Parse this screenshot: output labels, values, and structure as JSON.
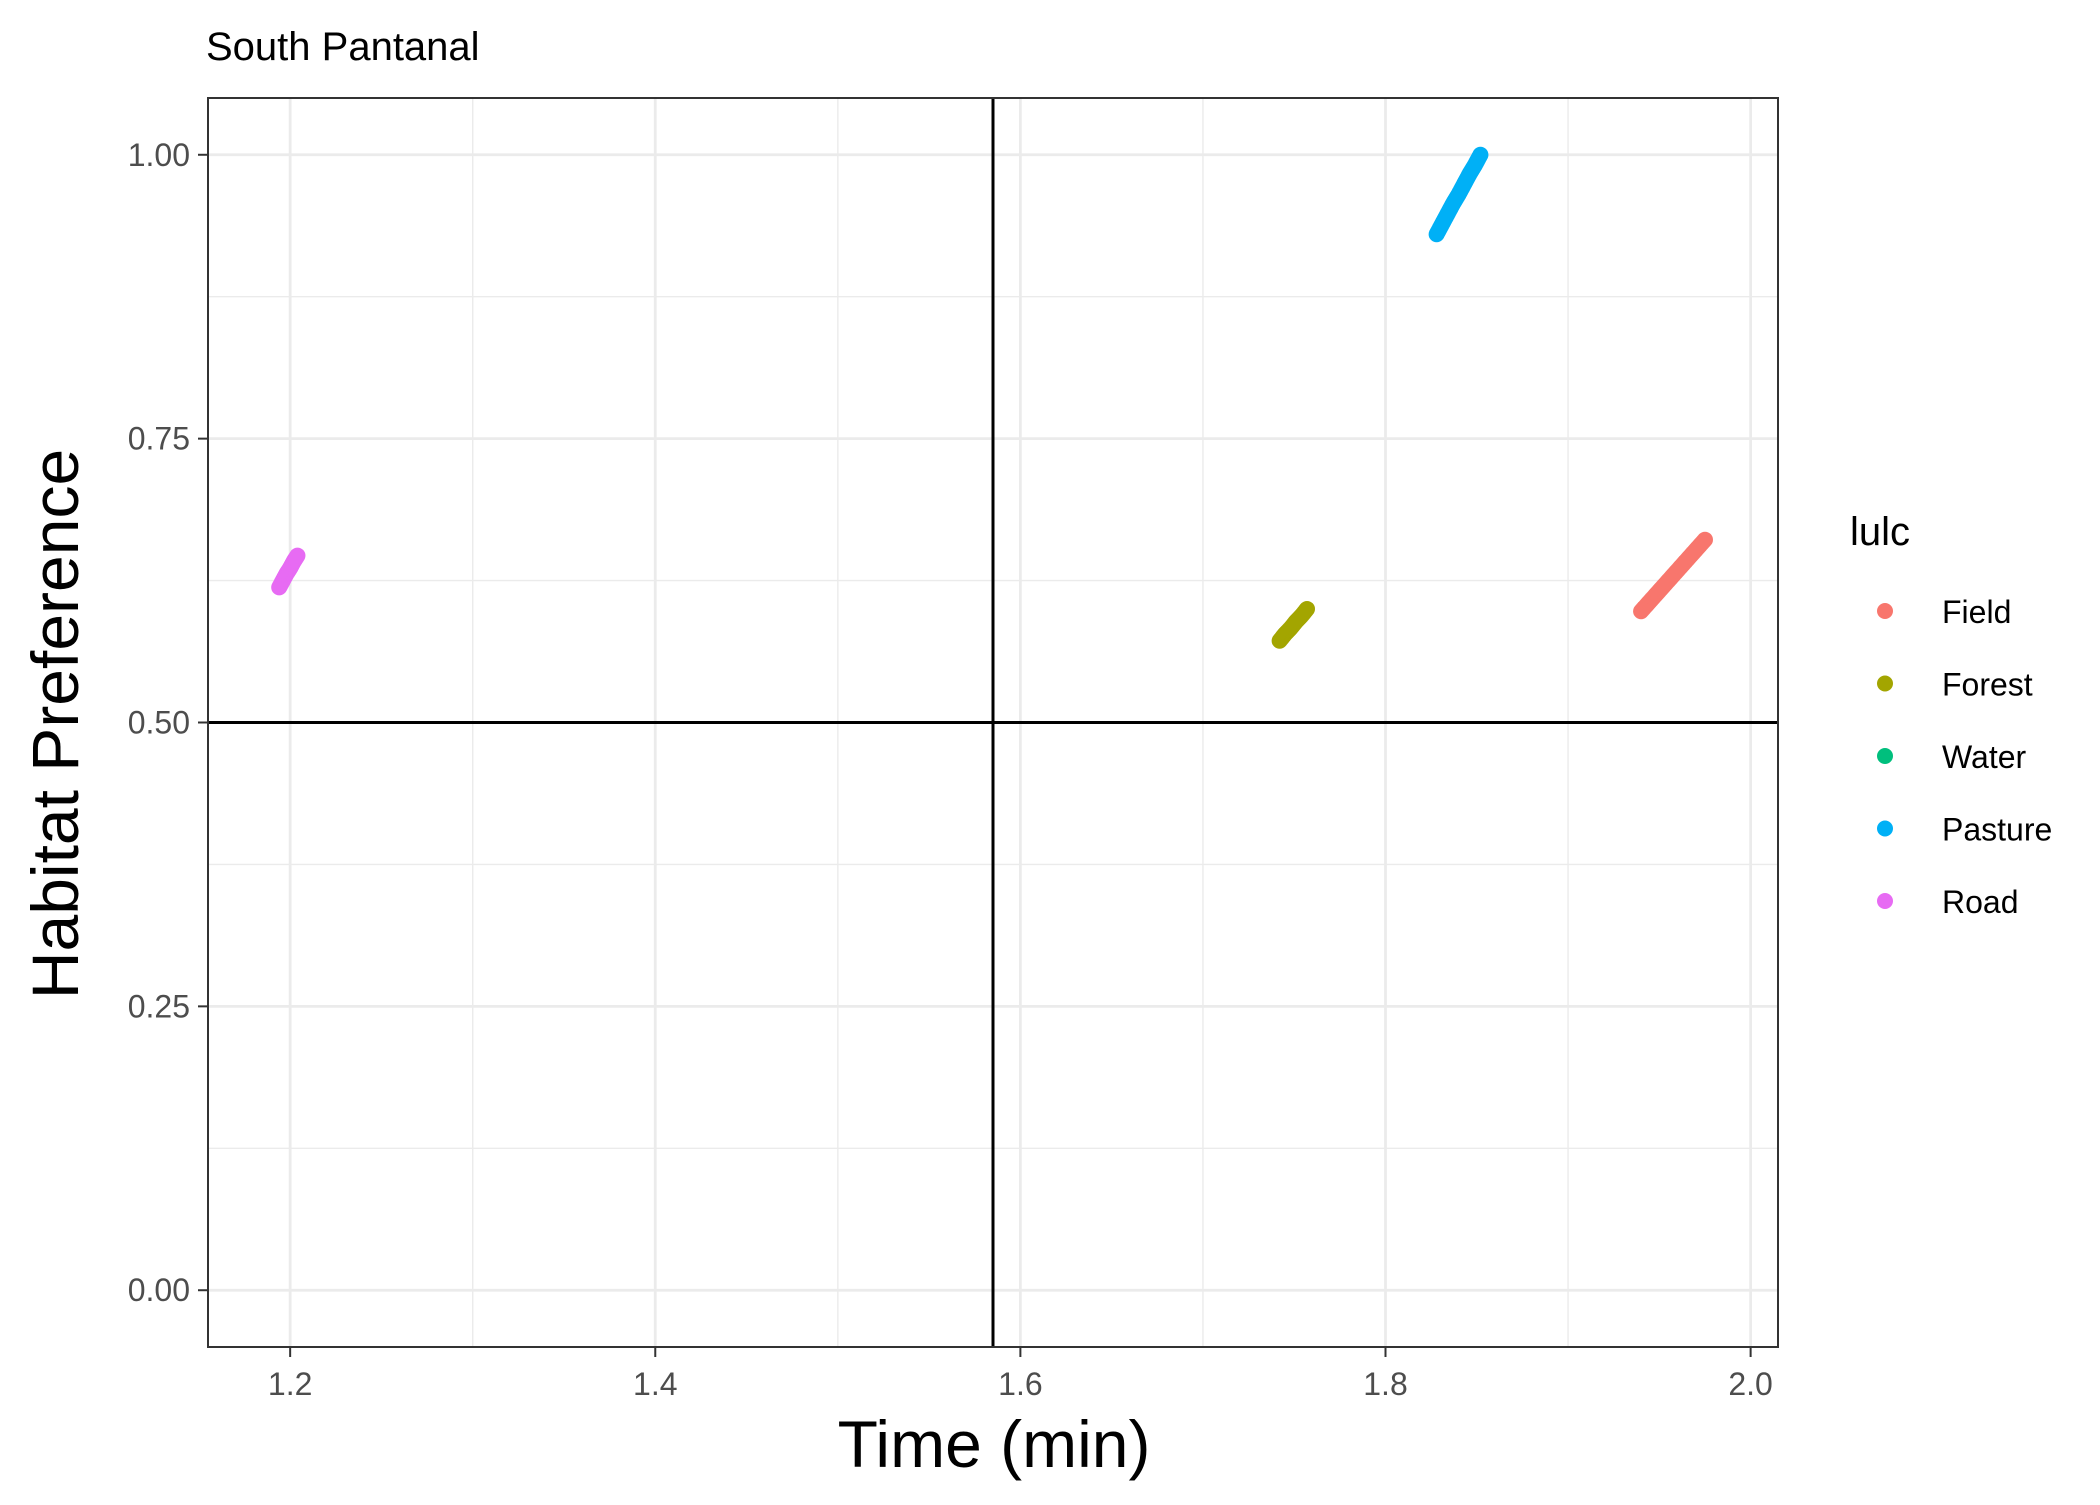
{
  "chart_data": {
    "type": "scatter",
    "title": "South Pantanal",
    "xlabel": "Time (min)",
    "ylabel": "Habitat Preference",
    "xlim": [
      1.155,
      2.015
    ],
    "ylim": [
      -0.05,
      1.05
    ],
    "x_major_ticks": [
      1.2,
      1.4,
      1.6,
      1.8,
      2.0
    ],
    "x_tick_labels": [
      "1.2",
      "1.4",
      "1.6",
      "1.8",
      "2.0"
    ],
    "x_minor_ticks": [
      1.3,
      1.5,
      1.7,
      1.9
    ],
    "y_major_ticks": [
      0,
      0.25,
      0.5,
      0.75,
      1.0
    ],
    "y_tick_labels": [
      "0.00",
      "0.25",
      "0.50",
      "0.75",
      "1.00"
    ],
    "y_minor_ticks": [
      0.125,
      0.375,
      0.625,
      0.875
    ],
    "grid": true,
    "reference_lines": {
      "vertical_x": 1.585,
      "horizontal_y": 0.5
    },
    "legend": {
      "title": "lulc",
      "position": "right"
    },
    "series": [
      {
        "name": "Field",
        "color": "#F8766D",
        "x": [
          1.94,
          1.945,
          1.95,
          1.955,
          1.96,
          1.965,
          1.97,
          1.975
        ],
        "y": [
          0.598,
          0.607,
          0.616,
          0.625,
          0.634,
          0.643,
          0.652,
          0.661
        ]
      },
      {
        "name": "Forest",
        "color": "#A3A500",
        "x": [
          1.742,
          1.745,
          1.748,
          1.751,
          1.754,
          1.757
        ],
        "y": [
          0.572,
          0.578,
          0.583,
          0.589,
          0.594,
          0.6
        ]
      },
      {
        "name": "Water",
        "color": "#00BF7D",
        "x": [],
        "y": []
      },
      {
        "name": "Pasture",
        "color": "#00B0F6",
        "x": [
          1.828,
          1.831,
          1.834,
          1.837,
          1.84,
          1.843,
          1.846,
          1.849,
          1.852
        ],
        "y": [
          0.93,
          0.939,
          0.948,
          0.957,
          0.965,
          0.974,
          0.983,
          0.991,
          1.0
        ]
      },
      {
        "name": "Road",
        "color": "#E76BF3",
        "x": [
          1.194,
          1.196,
          1.198,
          1.2,
          1.202,
          1.204
        ],
        "y": [
          0.619,
          0.625,
          0.631,
          0.636,
          0.642,
          0.647
        ]
      }
    ]
  }
}
